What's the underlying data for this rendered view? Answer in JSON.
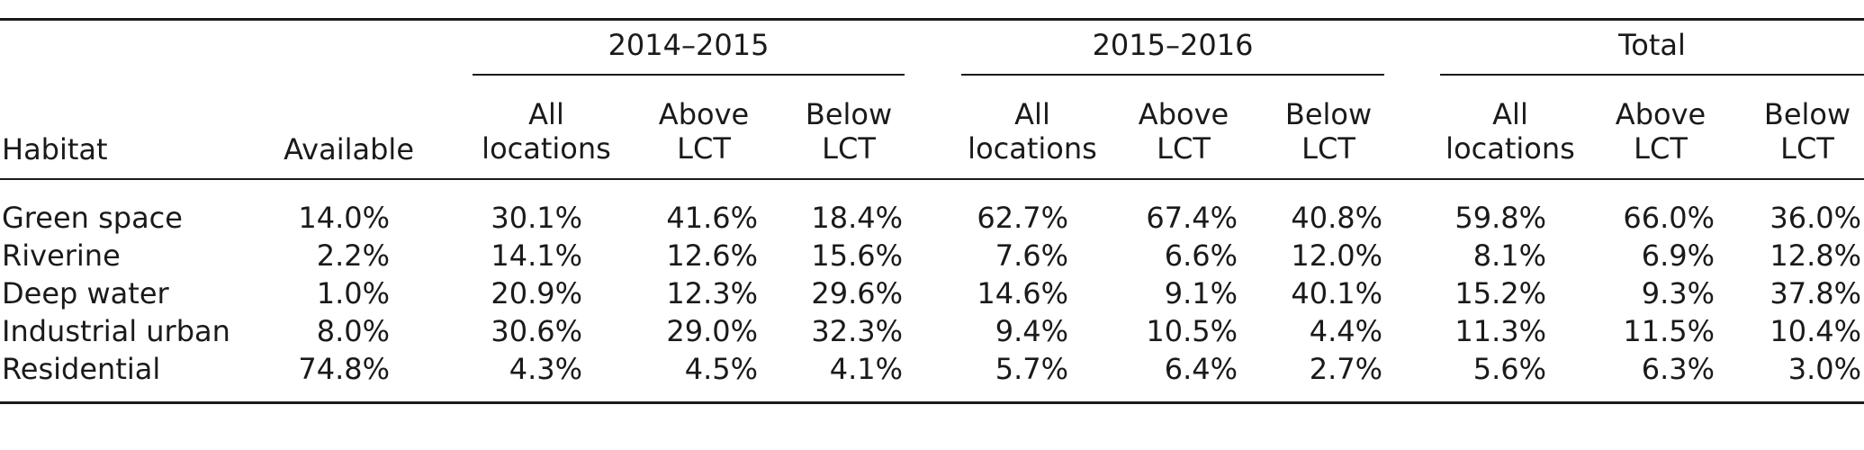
{
  "table": {
    "groups": [
      "2014–2015",
      "2015–2016",
      "Total"
    ],
    "header": {
      "habitat": "Habitat",
      "available": "Available",
      "sub": [
        {
          "line1": "All",
          "line2": "locations"
        },
        {
          "line1": "Above",
          "line2": "LCT"
        },
        {
          "line1": "Below",
          "line2": "LCT"
        }
      ]
    },
    "rows": [
      {
        "habitat": "Green space",
        "available": "14.0%",
        "values": [
          "30.1%",
          "41.6%",
          "18.4%",
          "62.7%",
          "67.4%",
          "40.8%",
          "59.8%",
          "66.0%",
          "36.0%"
        ]
      },
      {
        "habitat": "Riverine",
        "available": "2.2%",
        "values": [
          "14.1%",
          "12.6%",
          "15.6%",
          "7.6%",
          "6.6%",
          "12.0%",
          "8.1%",
          "6.9%",
          "12.8%"
        ]
      },
      {
        "habitat": "Deep water",
        "available": "1.0%",
        "values": [
          "20.9%",
          "12.3%",
          "29.6%",
          "14.6%",
          "9.1%",
          "40.1%",
          "15.2%",
          "9.3%",
          "37.8%"
        ]
      },
      {
        "habitat": "Industrial urban",
        "available": "8.0%",
        "values": [
          "30.6%",
          "29.0%",
          "32.3%",
          "9.4%",
          "10.5%",
          "4.4%",
          "11.3%",
          "11.5%",
          "10.4%"
        ]
      },
      {
        "habitat": "Residential",
        "available": "74.8%",
        "values": [
          "4.3%",
          "4.5%",
          "4.1%",
          "5.7%",
          "6.4%",
          "2.7%",
          "5.6%",
          "6.3%",
          "3.0%"
        ]
      }
    ]
  }
}
